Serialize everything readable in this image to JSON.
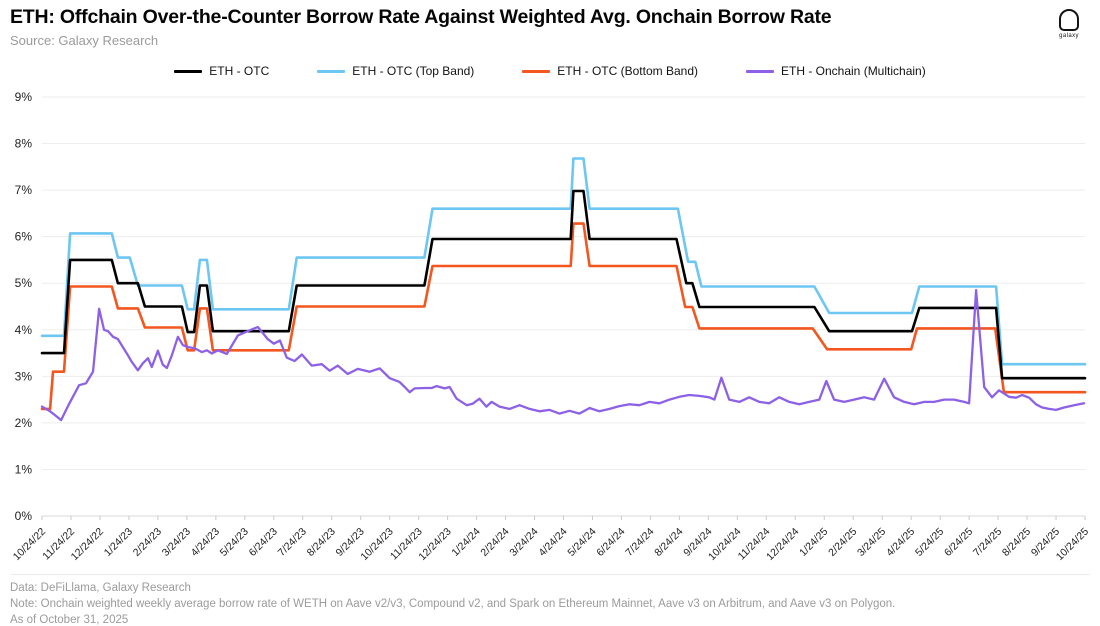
{
  "logo": {
    "text": "galaxy"
  },
  "chart_data": {
    "type": "line",
    "title": "ETH: Offchain Over-the-Counter Borrow Rate Against Weighted Avg. Onchain Borrow Rate",
    "source": "Source: Galaxy Research",
    "legend_position": "top",
    "grid": "horizontal",
    "y_axis": {
      "min": 0,
      "max": 9,
      "tick_suffix": "%",
      "ticks": [
        "0%",
        "1%",
        "2%",
        "3%",
        "4%",
        "5%",
        "6%",
        "7%",
        "8%",
        "9%"
      ]
    },
    "x_axis": {
      "unit": "months-from-start",
      "range_months": [
        0,
        36
      ],
      "labels": [
        "10/24/22",
        "11/24/22",
        "12/24/22",
        "1/24/23",
        "2/24/23",
        "3/24/23",
        "4/24/23",
        "5/24/23",
        "6/24/23",
        "7/24/23",
        "8/24/23",
        "9/24/23",
        "10/24/23",
        "11/24/23",
        "12/24/23",
        "1/24/24",
        "2/24/24",
        "3/24/24",
        "4/24/24",
        "5/24/24",
        "6/24/24",
        "7/24/24",
        "8/24/24",
        "9/24/24",
        "10/24/24",
        "11/24/24",
        "12/24/24",
        "1/24/25",
        "2/24/25",
        "3/24/25",
        "4/24/25",
        "5/24/25",
        "6/24/25",
        "7/24/25",
        "8/24/25",
        "9/24/25",
        "10/24/25"
      ]
    },
    "series": [
      {
        "id": "eth-otc",
        "name": "ETH - OTC",
        "color": "#000000",
        "width": 2.6,
        "points": [
          [
            0,
            3.5
          ],
          [
            0.76,
            3.5
          ],
          [
            0.97,
            5.5
          ],
          [
            2.41,
            5.5
          ],
          [
            2.62,
            5.0
          ],
          [
            3.31,
            5.0
          ],
          [
            3.55,
            4.5
          ],
          [
            4.83,
            4.5
          ],
          [
            5.03,
            3.95
          ],
          [
            5.25,
            3.95
          ],
          [
            5.45,
            4.95
          ],
          [
            5.69,
            4.95
          ],
          [
            5.9,
            3.97
          ],
          [
            8.52,
            3.97
          ],
          [
            8.79,
            4.95
          ],
          [
            13.2,
            4.95
          ],
          [
            13.48,
            5.95
          ],
          [
            18.25,
            5.95
          ],
          [
            18.34,
            6.98
          ],
          [
            18.69,
            6.98
          ],
          [
            18.9,
            5.95
          ],
          [
            21.9,
            5.95
          ],
          [
            22.24,
            5.0
          ],
          [
            22.45,
            5.0
          ],
          [
            22.69,
            4.49
          ],
          [
            26.66,
            4.49
          ],
          [
            27.17,
            3.97
          ],
          [
            30.03,
            3.97
          ],
          [
            30.28,
            4.47
          ],
          [
            32.93,
            4.47
          ],
          [
            33.14,
            2.96
          ],
          [
            36,
            2.96
          ]
        ]
      },
      {
        "id": "eth-otc-top-band",
        "name": "ETH - OTC (Top Band)",
        "color": "#6ec6f2",
        "width": 2.6,
        "points": [
          [
            0,
            3.87
          ],
          [
            0.76,
            3.87
          ],
          [
            0.97,
            6.07
          ],
          [
            2.41,
            6.07
          ],
          [
            2.62,
            5.55
          ],
          [
            3.03,
            5.55
          ],
          [
            3.31,
            4.95
          ],
          [
            4.83,
            4.95
          ],
          [
            5.03,
            4.44
          ],
          [
            5.25,
            4.44
          ],
          [
            5.45,
            5.5
          ],
          [
            5.69,
            5.5
          ],
          [
            5.9,
            4.44
          ],
          [
            8.52,
            4.44
          ],
          [
            8.79,
            5.55
          ],
          [
            13.2,
            5.55
          ],
          [
            13.48,
            6.6
          ],
          [
            18.25,
            6.6
          ],
          [
            18.34,
            7.68
          ],
          [
            18.69,
            7.68
          ],
          [
            18.9,
            6.6
          ],
          [
            21.95,
            6.6
          ],
          [
            22.3,
            5.46
          ],
          [
            22.55,
            5.46
          ],
          [
            22.76,
            4.93
          ],
          [
            26.66,
            4.93
          ],
          [
            27.17,
            4.36
          ],
          [
            30.03,
            4.36
          ],
          [
            30.28,
            4.93
          ],
          [
            32.93,
            4.93
          ],
          [
            33.14,
            3.26
          ],
          [
            36,
            3.26
          ]
        ]
      },
      {
        "id": "eth-otc-bottom-band",
        "name": "ETH - OTC (Bottom Band)",
        "color": "#f3561f",
        "width": 2.6,
        "points": [
          [
            0,
            2.3
          ],
          [
            0.28,
            2.3
          ],
          [
            0.38,
            3.1
          ],
          [
            0.76,
            3.1
          ],
          [
            0.97,
            4.93
          ],
          [
            2.41,
            4.93
          ],
          [
            2.62,
            4.46
          ],
          [
            3.31,
            4.46
          ],
          [
            3.55,
            4.05
          ],
          [
            4.83,
            4.05
          ],
          [
            5.03,
            3.56
          ],
          [
            5.25,
            3.56
          ],
          [
            5.45,
            4.46
          ],
          [
            5.69,
            4.46
          ],
          [
            5.9,
            3.56
          ],
          [
            8.52,
            3.56
          ],
          [
            8.79,
            4.5
          ],
          [
            13.2,
            4.5
          ],
          [
            13.48,
            5.37
          ],
          [
            18.25,
            5.37
          ],
          [
            18.34,
            6.28
          ],
          [
            18.69,
            6.28
          ],
          [
            18.9,
            5.37
          ],
          [
            21.9,
            5.37
          ],
          [
            22.2,
            4.49
          ],
          [
            22.45,
            4.49
          ],
          [
            22.69,
            4.03
          ],
          [
            26.6,
            4.03
          ],
          [
            27.1,
            3.58
          ],
          [
            30.0,
            3.58
          ],
          [
            30.2,
            4.03
          ],
          [
            32.9,
            4.03
          ],
          [
            33.2,
            2.66
          ],
          [
            36,
            2.66
          ]
        ]
      },
      {
        "id": "eth-onchain-multichain",
        "name": "ETH - Onchain (Multichain)",
        "color": "#8d61e7",
        "width": 2.3,
        "points": [
          [
            0,
            2.35
          ],
          [
            0.28,
            2.25
          ],
          [
            0.48,
            2.15
          ],
          [
            0.66,
            2.06
          ],
          [
            0.93,
            2.4
          ],
          [
            1.28,
            2.81
          ],
          [
            1.52,
            2.85
          ],
          [
            1.76,
            3.1
          ],
          [
            1.97,
            4.45
          ],
          [
            2.14,
            4.0
          ],
          [
            2.28,
            3.97
          ],
          [
            2.45,
            3.85
          ],
          [
            2.62,
            3.8
          ],
          [
            2.79,
            3.63
          ],
          [
            2.97,
            3.45
          ],
          [
            3.1,
            3.31
          ],
          [
            3.31,
            3.13
          ],
          [
            3.48,
            3.28
          ],
          [
            3.66,
            3.39
          ],
          [
            3.79,
            3.2
          ],
          [
            4.0,
            3.55
          ],
          [
            4.17,
            3.25
          ],
          [
            4.31,
            3.18
          ],
          [
            4.48,
            3.45
          ],
          [
            4.69,
            3.85
          ],
          [
            4.86,
            3.67
          ],
          [
            5.03,
            3.63
          ],
          [
            5.28,
            3.6
          ],
          [
            5.52,
            3.52
          ],
          [
            5.69,
            3.56
          ],
          [
            5.86,
            3.49
          ],
          [
            6.07,
            3.56
          ],
          [
            6.38,
            3.48
          ],
          [
            6.76,
            3.88
          ],
          [
            7.07,
            3.96
          ],
          [
            7.45,
            4.06
          ],
          [
            7.66,
            3.9
          ],
          [
            7.79,
            3.8
          ],
          [
            8.0,
            3.7
          ],
          [
            8.21,
            3.77
          ],
          [
            8.45,
            3.4
          ],
          [
            8.72,
            3.33
          ],
          [
            8.97,
            3.47
          ],
          [
            9.31,
            3.23
          ],
          [
            9.66,
            3.26
          ],
          [
            9.93,
            3.12
          ],
          [
            10.21,
            3.23
          ],
          [
            10.55,
            3.05
          ],
          [
            10.9,
            3.16
          ],
          [
            11.31,
            3.1
          ],
          [
            11.66,
            3.17
          ],
          [
            12.0,
            2.96
          ],
          [
            12.34,
            2.88
          ],
          [
            12.52,
            2.77
          ],
          [
            12.69,
            2.66
          ],
          [
            12.86,
            2.74
          ],
          [
            13.21,
            2.75
          ],
          [
            13.45,
            2.75
          ],
          [
            13.62,
            2.79
          ],
          [
            13.9,
            2.74
          ],
          [
            14.07,
            2.77
          ],
          [
            14.31,
            2.52
          ],
          [
            14.66,
            2.38
          ],
          [
            14.86,
            2.41
          ],
          [
            15.1,
            2.52
          ],
          [
            15.34,
            2.35
          ],
          [
            15.52,
            2.45
          ],
          [
            15.79,
            2.35
          ],
          [
            16.14,
            2.3
          ],
          [
            16.48,
            2.38
          ],
          [
            16.83,
            2.3
          ],
          [
            17.17,
            2.25
          ],
          [
            17.52,
            2.28
          ],
          [
            17.86,
            2.2
          ],
          [
            18.21,
            2.26
          ],
          [
            18.55,
            2.2
          ],
          [
            18.9,
            2.32
          ],
          [
            19.24,
            2.25
          ],
          [
            19.59,
            2.3
          ],
          [
            19.93,
            2.36
          ],
          [
            20.28,
            2.4
          ],
          [
            20.62,
            2.38
          ],
          [
            20.97,
            2.45
          ],
          [
            21.31,
            2.42
          ],
          [
            21.66,
            2.5
          ],
          [
            22.0,
            2.56
          ],
          [
            22.34,
            2.6
          ],
          [
            22.69,
            2.58
          ],
          [
            23.03,
            2.55
          ],
          [
            23.21,
            2.5
          ],
          [
            23.45,
            2.97
          ],
          [
            23.72,
            2.5
          ],
          [
            24.07,
            2.45
          ],
          [
            24.41,
            2.55
          ],
          [
            24.76,
            2.45
          ],
          [
            25.1,
            2.42
          ],
          [
            25.45,
            2.55
          ],
          [
            25.79,
            2.45
          ],
          [
            26.14,
            2.4
          ],
          [
            26.48,
            2.45
          ],
          [
            26.83,
            2.5
          ],
          [
            27.07,
            2.9
          ],
          [
            27.34,
            2.5
          ],
          [
            27.69,
            2.45
          ],
          [
            28.03,
            2.5
          ],
          [
            28.38,
            2.55
          ],
          [
            28.72,
            2.5
          ],
          [
            29.07,
            2.95
          ],
          [
            29.41,
            2.55
          ],
          [
            29.76,
            2.45
          ],
          [
            30.1,
            2.4
          ],
          [
            30.45,
            2.45
          ],
          [
            30.79,
            2.45
          ],
          [
            31.14,
            2.5
          ],
          [
            31.48,
            2.5
          ],
          [
            31.83,
            2.45
          ],
          [
            32.0,
            2.42
          ],
          [
            32.24,
            4.85
          ],
          [
            32.52,
            2.77
          ],
          [
            32.79,
            2.55
          ],
          [
            33.03,
            2.7
          ],
          [
            33.38,
            2.56
          ],
          [
            33.62,
            2.54
          ],
          [
            33.83,
            2.6
          ],
          [
            34.07,
            2.54
          ],
          [
            34.31,
            2.4
          ],
          [
            34.52,
            2.33
          ],
          [
            34.76,
            2.3
          ],
          [
            35.0,
            2.28
          ],
          [
            35.28,
            2.33
          ],
          [
            35.62,
            2.38
          ],
          [
            35.97,
            2.42
          ]
        ]
      }
    ],
    "footnotes": [
      "Data: DeFiLlama, Galaxy Research",
      "Note: Onchain weighted weekly average borrow rate of WETH on Aave v2/v3, Compound v2, and Spark on Ethereum Mainnet, Aave v3 on Arbitrum, and Aave v3 on Polygon.",
      "As of October 31, 2025"
    ]
  }
}
